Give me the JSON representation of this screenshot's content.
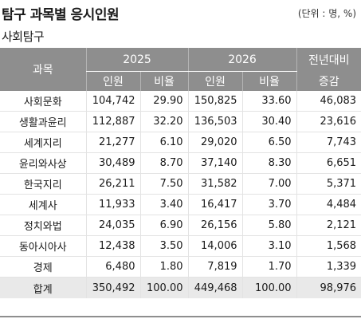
{
  "header": {
    "title": "탐구 과목별 응시인원",
    "unit": "(단위 : 명, %)"
  },
  "section_label": "사회탐구",
  "table": {
    "subject_header": "과목",
    "year_a": "2025",
    "year_b": "2026",
    "change_header_1": "전년대비",
    "change_header_2": "증감",
    "people_label": "인원",
    "ratio_label": "비율",
    "rows": [
      {
        "subject": "사회문화",
        "p2025": "104,742",
        "r2025": "29.90",
        "p2026": "150,825",
        "r2026": "33.60",
        "change": "46,083"
      },
      {
        "subject": "생활과윤리",
        "p2025": "112,887",
        "r2025": "32.20",
        "p2026": "136,503",
        "r2026": "30.40",
        "change": "23,616"
      },
      {
        "subject": "세계지리",
        "p2025": "21,277",
        "r2025": "6.10",
        "p2026": "29,020",
        "r2026": "6.50",
        "change": "7,743"
      },
      {
        "subject": "윤리와사상",
        "p2025": "30,489",
        "r2025": "8.70",
        "p2026": "37,140",
        "r2026": "8.30",
        "change": "6,651"
      },
      {
        "subject": "한국지리",
        "p2025": "26,211",
        "r2025": "7.50",
        "p2026": "31,582",
        "r2026": "7.00",
        "change": "5,371"
      },
      {
        "subject": "세계사",
        "p2025": "11,933",
        "r2025": "3.40",
        "p2026": "16,417",
        "r2026": "3.70",
        "change": "4,484"
      },
      {
        "subject": "정치와법",
        "p2025": "24,035",
        "r2025": "6.90",
        "p2026": "26,156",
        "r2026": "5.80",
        "change": "2,121"
      },
      {
        "subject": "동아시아사",
        "p2025": "12,438",
        "r2025": "3.50",
        "p2026": "14,006",
        "r2026": "3.10",
        "change": "1,568"
      },
      {
        "subject": "경제",
        "p2025": "6,480",
        "r2025": "1.80",
        "p2026": "7,819",
        "r2026": "1.70",
        "change": "1,339"
      }
    ],
    "total": {
      "subject": "합계",
      "p2025": "350,492",
      "r2025": "100.00",
      "p2026": "449,468",
      "r2026": "100.00",
      "change": "98,976"
    }
  }
}
